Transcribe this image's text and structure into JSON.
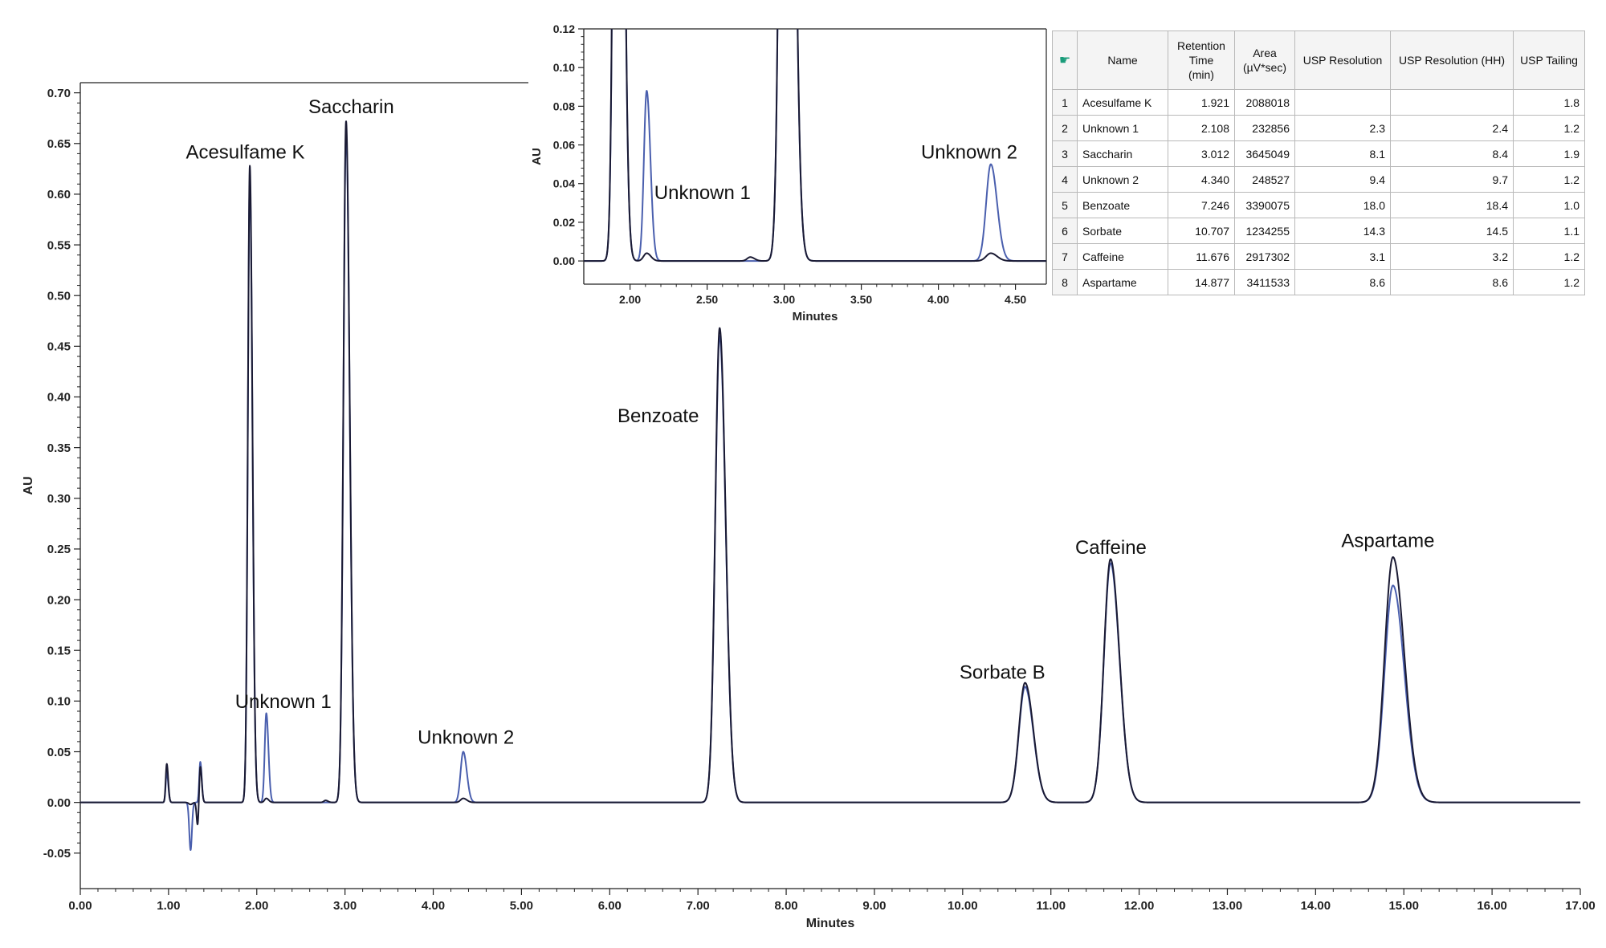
{
  "chart_data": [
    {
      "type": "line",
      "xlabel": "Minutes",
      "ylabel": "AU",
      "xlim": [
        0,
        17
      ],
      "ylim": [
        -0.085,
        0.71
      ],
      "xticks": [
        0,
        1,
        2,
        3,
        4,
        5,
        6,
        7,
        8,
        9,
        10,
        11,
        12,
        13,
        14,
        15,
        16,
        17
      ],
      "yticks": [
        -0.05,
        0,
        0.05,
        0.1,
        0.15,
        0.2,
        0.25,
        0.3,
        0.35,
        0.4,
        0.45,
        0.5,
        0.55,
        0.6,
        0.65,
        0.7
      ],
      "annotations": [
        {
          "text": "Acesulfame K",
          "x": 1.87,
          "y": 0.635
        },
        {
          "text": "Unknown 1",
          "x": 2.3,
          "y": 0.093
        },
        {
          "text": "Saccharin",
          "x": 3.07,
          "y": 0.68
        },
        {
          "text": "Unknown 2",
          "x": 4.37,
          "y": 0.058
        },
        {
          "text": "Benzoate",
          "x": 6.55,
          "y": 0.375
        },
        {
          "text": "Sorbate B",
          "x": 10.45,
          "y": 0.122
        },
        {
          "text": "Caffeine",
          "x": 11.68,
          "y": 0.245
        },
        {
          "text": "Aspartame",
          "x": 14.82,
          "y": 0.252
        }
      ],
      "series": [
        {
          "color": "#1a1a33",
          "baseline_end_x": 16.2,
          "peaks": [
            {
              "x": 0.98,
              "h": 0.038,
              "w": 0.012
            },
            {
              "x": 1.36,
              "h": 0.036,
              "w": 0.012
            },
            {
              "x": 1.921,
              "h": 0.628,
              "w": 0.022
            },
            {
              "x": 2.108,
              "h": 0.004,
              "w": 0.02
            },
            {
              "x": 2.78,
              "h": 0.002,
              "w": 0.02
            },
            {
              "x": 3.012,
              "h": 0.672,
              "w": 0.03
            },
            {
              "x": 4.34,
              "h": 0.004,
              "w": 0.03
            },
            {
              "x": 7.246,
              "h": 0.468,
              "w": 0.05
            },
            {
              "x": 10.707,
              "h": 0.118,
              "w": 0.07
            },
            {
              "x": 11.676,
              "h": 0.24,
              "w": 0.075
            },
            {
              "x": 14.877,
              "h": 0.242,
              "w": 0.095
            }
          ],
          "dips": [
            {
              "x": 1.25,
              "h": -0.002,
              "w": 0.02
            },
            {
              "x": 1.33,
              "h": -0.023,
              "w": 0.012
            }
          ]
        },
        {
          "color": "#4a5fae",
          "baseline_end_x": 16.2,
          "peaks": [
            {
              "x": 0.98,
              "h": 0.03,
              "w": 0.012
            },
            {
              "x": 1.36,
              "h": 0.04,
              "w": 0.012
            },
            {
              "x": 1.921,
              "h": 0.615,
              "w": 0.022
            },
            {
              "x": 2.108,
              "h": 0.088,
              "w": 0.018
            },
            {
              "x": 3.012,
              "h": 0.662,
              "w": 0.03
            },
            {
              "x": 4.34,
              "h": 0.05,
              "w": 0.03
            },
            {
              "x": 7.246,
              "h": 0.46,
              "w": 0.05
            },
            {
              "x": 10.707,
              "h": 0.114,
              "w": 0.07
            },
            {
              "x": 11.676,
              "h": 0.236,
              "w": 0.075
            },
            {
              "x": 14.877,
              "h": 0.214,
              "w": 0.095
            }
          ],
          "dips": [
            {
              "x": 1.25,
              "h": -0.047,
              "w": 0.015
            }
          ]
        }
      ]
    },
    {
      "type": "line",
      "xlabel": "Minutes",
      "ylabel": "AU",
      "xlim": [
        1.7,
        4.7
      ],
      "ylim": [
        -0.012,
        0.12
      ],
      "xticks": [
        2.0,
        2.5,
        3.0,
        3.5,
        4.0,
        4.5
      ],
      "yticks": [
        0,
        0.02,
        0.04,
        0.06,
        0.08,
        0.1,
        0.12
      ],
      "annotations": [
        {
          "text": "Unknown 1",
          "x": 2.47,
          "y": 0.032
        },
        {
          "text": "Unknown 2",
          "x": 4.2,
          "y": 0.053
        }
      ]
    }
  ],
  "table": {
    "headers": [
      "Name",
      "Retention Time (min)",
      "Area (µV*sec)",
      "USP Resolution",
      "USP Resolution (HH)",
      "USP Tailing"
    ],
    "header_lines": [
      [
        "Name"
      ],
      [
        "Retention",
        "Time",
        "(min)"
      ],
      [
        "Area",
        "(µV*sec)"
      ],
      [
        "USP Resolution"
      ],
      [
        "USP Resolution (HH)"
      ],
      [
        "USP Tailing"
      ]
    ],
    "rows": [
      {
        "idx": "1",
        "name": "Acesulfame K",
        "rt": "1.921",
        "area": "2088018",
        "res": "",
        "resHH": "",
        "tail": "1.8"
      },
      {
        "idx": "2",
        "name": "Unknown 1",
        "rt": "2.108",
        "area": "232856",
        "res": "2.3",
        "resHH": "2.4",
        "tail": "1.2"
      },
      {
        "idx": "3",
        "name": "Saccharin",
        "rt": "3.012",
        "area": "3645049",
        "res": "8.1",
        "resHH": "8.4",
        "tail": "1.9"
      },
      {
        "idx": "4",
        "name": "Unknown 2",
        "rt": "4.340",
        "area": "248527",
        "res": "9.4",
        "resHH": "9.7",
        "tail": "1.2"
      },
      {
        "idx": "5",
        "name": "Benzoate",
        "rt": "7.246",
        "area": "3390075",
        "res": "18.0",
        "resHH": "18.4",
        "tail": "1.0"
      },
      {
        "idx": "6",
        "name": "Sorbate",
        "rt": "10.707",
        "area": "1234255",
        "res": "14.3",
        "resHH": "14.5",
        "tail": "1.1"
      },
      {
        "idx": "7",
        "name": "Caffeine",
        "rt": "11.676",
        "area": "2917302",
        "res": "3.1",
        "resHH": "3.2",
        "tail": "1.2"
      },
      {
        "idx": "8",
        "name": "Aspartame",
        "rt": "14.877",
        "area": "3411533",
        "res": "8.6",
        "resHH": "8.6",
        "tail": "1.2"
      }
    ]
  }
}
